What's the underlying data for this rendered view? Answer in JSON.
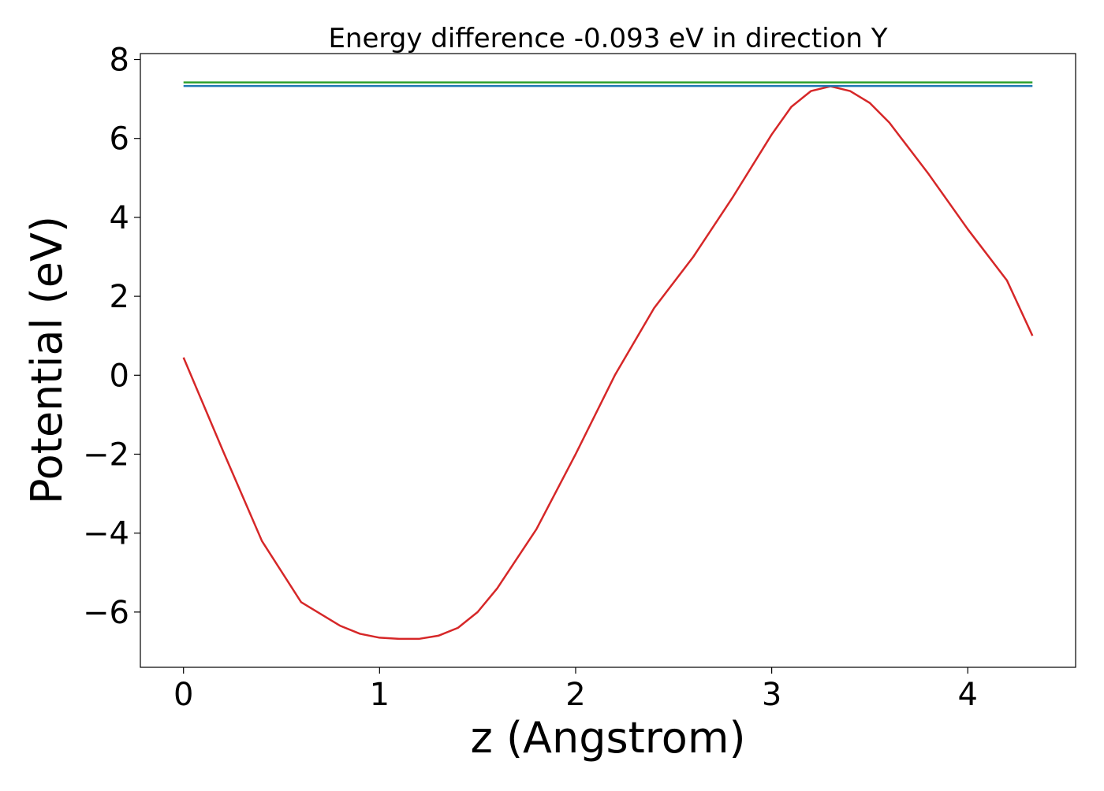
{
  "chart_data": {
    "type": "line",
    "title": "Energy difference -0.093 eV in direction Y",
    "xlabel": "z (Angstrom)",
    "ylabel": "Potential (eV)",
    "xlim": [
      -0.22,
      4.55
    ],
    "ylim": [
      -7.4,
      8.15
    ],
    "xticks": [
      0,
      1,
      2,
      3,
      4
    ],
    "xtick_labels": [
      "0",
      "1",
      "2",
      "3",
      "4"
    ],
    "yticks": [
      -6,
      -4,
      -2,
      0,
      2,
      4,
      6,
      8
    ],
    "ytick_labels": [
      "−6",
      "−4",
      "−2",
      "0",
      "2",
      "4",
      "6",
      "8"
    ],
    "grid": false,
    "series": [
      {
        "color": "#d62728",
        "x": [
          0.0,
          0.2,
          0.4,
          0.6,
          0.8,
          0.9,
          1.0,
          1.1,
          1.2,
          1.3,
          1.4,
          1.5,
          1.6,
          1.8,
          2.0,
          2.2,
          2.4,
          2.6,
          2.8,
          3.0,
          3.1,
          3.2,
          3.3,
          3.4,
          3.5,
          3.6,
          3.8,
          4.0,
          4.2,
          4.33
        ],
        "y": [
          0.45,
          -1.9,
          -4.2,
          -5.75,
          -6.35,
          -6.55,
          -6.65,
          -6.68,
          -6.68,
          -6.6,
          -6.4,
          -6.0,
          -5.4,
          -3.9,
          -2.0,
          0.0,
          1.7,
          3.0,
          4.5,
          6.1,
          6.8,
          7.2,
          7.32,
          7.2,
          6.9,
          6.4,
          5.1,
          3.7,
          2.4,
          1.0
        ]
      },
      {
        "color": "#2ca02c",
        "x": [
          0.0,
          4.33
        ],
        "y": [
          7.42,
          7.42
        ]
      },
      {
        "color": "#1f77b4",
        "x": [
          0.0,
          4.33
        ],
        "y": [
          7.33,
          7.33
        ]
      }
    ]
  }
}
